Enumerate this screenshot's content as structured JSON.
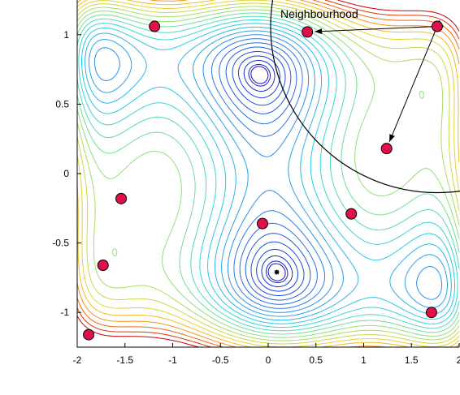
{
  "chart_data": {
    "type": "scatter",
    "title": "",
    "xlabel": "",
    "ylabel": "",
    "xlim": [
      -2,
      2
    ],
    "ylim": [
      -1.25,
      1.25
    ],
    "x_ticks": [
      -2,
      -1.5,
      -1,
      -0.5,
      0,
      0.5,
      1,
      1.5,
      2
    ],
    "x_tick_labels": [
      "-2",
      "-1.5",
      "-1",
      "-0.5",
      "0",
      "0.5",
      "1",
      "1.5",
      "2"
    ],
    "y_ticks": [
      -1,
      -0.5,
      0,
      0.5,
      1
    ],
    "y_tick_labels": [
      "-1",
      "-0.5",
      "0",
      "0.5",
      "1"
    ],
    "grid": false,
    "background": "contour plot of an objective function (filled-line contours, blue low to red high)",
    "points": [
      {
        "x": -1.19,
        "y": 1.06
      },
      {
        "x": 0.41,
        "y": 1.02
      },
      {
        "x": 1.77,
        "y": 1.06
      },
      {
        "x": 1.24,
        "y": 0.18
      },
      {
        "x": -1.54,
        "y": -0.18
      },
      {
        "x": -0.06,
        "y": -0.36
      },
      {
        "x": 0.87,
        "y": -0.29
      },
      {
        "x": -1.73,
        "y": -0.66
      },
      {
        "x": 1.71,
        "y": -1.0
      },
      {
        "x": -1.88,
        "y": -1.16
      }
    ],
    "best_point": {
      "x": 0.09,
      "y": -0.71
    },
    "neighbourhood": {
      "center_x": 1.77,
      "center_y": 1.06,
      "label": "Neighbourhood"
    },
    "arrows": [
      {
        "from": [
          1.77,
          1.06
        ],
        "to": [
          0.41,
          1.02
        ]
      },
      {
        "from": [
          1.77,
          1.06
        ],
        "to": [
          1.24,
          0.18
        ]
      }
    ],
    "colors": {
      "point_fill": "#e0104a",
      "point_edge": "#000000",
      "contour_low": "#1010d0",
      "contour_high": "#d00000"
    }
  }
}
